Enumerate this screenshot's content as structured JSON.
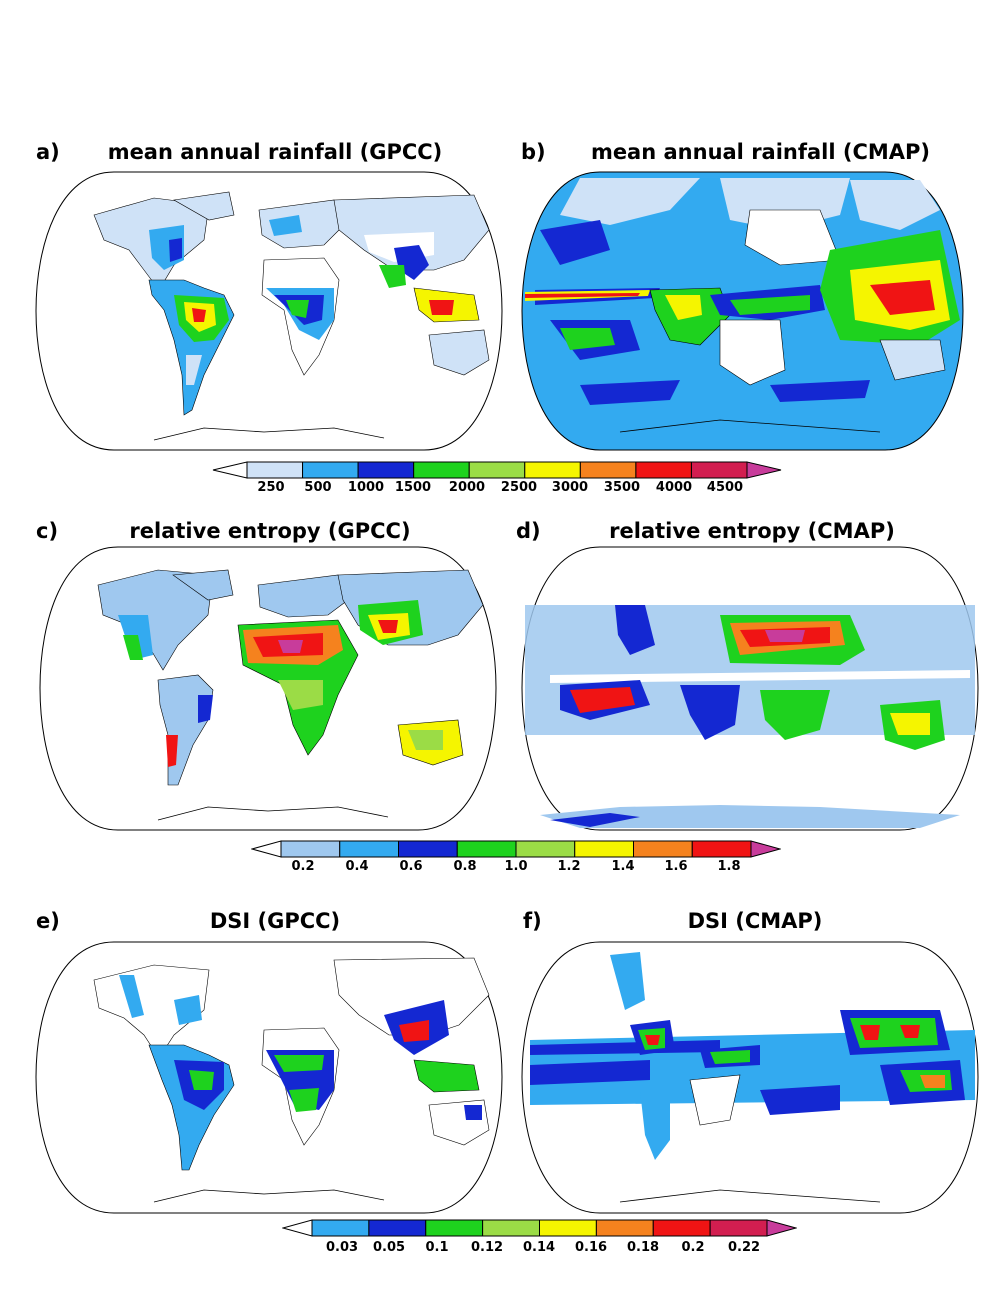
{
  "panels": [
    {
      "letter": "a)",
      "title": "mean annual rainfall (GPCC)"
    },
    {
      "letter": "b)",
      "title": "mean annual rainfall (CMAP)"
    },
    {
      "letter": "c)",
      "title": "relative entropy (GPCC)"
    },
    {
      "letter": "d)",
      "title": "relative entropy (CMAP)"
    },
    {
      "letter": "e)",
      "title": "DSI (GPCC)"
    },
    {
      "letter": "f)",
      "title": "DSI (CMAP)"
    }
  ],
  "colorbars": [
    {
      "name": "rainfall",
      "ticks": [
        "250",
        "500",
        "1000",
        "1500",
        "2000",
        "2500",
        "3000",
        "3500",
        "4000",
        "4500"
      ],
      "colors": [
        "#ffffff",
        "#cfe2f7",
        "#33aaf0",
        "#1428d2",
        "#1ed21e",
        "#9bdc46",
        "#f5f500",
        "#f5821e",
        "#f01414",
        "#d21e50",
        "#c83c9b"
      ]
    },
    {
      "name": "relative-entropy",
      "ticks": [
        "0.2",
        "0.4",
        "0.6",
        "0.8",
        "1.0",
        "1.2",
        "1.4",
        "1.6",
        "1.8"
      ],
      "colors": [
        "#ffffff",
        "#9fc8ef",
        "#33aaf0",
        "#1428d2",
        "#1ed21e",
        "#9bdc46",
        "#f5f500",
        "#f5821e",
        "#f01414",
        "#c83c9b"
      ]
    },
    {
      "name": "dsi",
      "ticks": [
        "0.03",
        "0.05",
        "0.1",
        "0.12",
        "0.14",
        "0.16",
        "0.18",
        "0.2",
        "0.22"
      ],
      "colors": [
        "#ffffff",
        "#33aaf0",
        "#1428d2",
        "#1ed21e",
        "#9bdc46",
        "#f5f500",
        "#f5821e",
        "#f01414",
        "#d21e50",
        "#c83c9b"
      ]
    }
  ]
}
